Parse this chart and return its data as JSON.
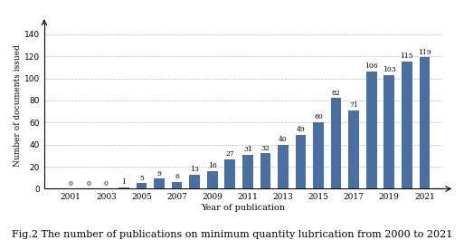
{
  "years": [
    2001,
    2002,
    2003,
    2004,
    2005,
    2006,
    2007,
    2008,
    2009,
    2010,
    2011,
    2012,
    2013,
    2014,
    2015,
    2016,
    2017,
    2018,
    2019,
    2020,
    2021
  ],
  "values": [
    0,
    0,
    0,
    1,
    5,
    9,
    6,
    13,
    16,
    27,
    31,
    32,
    40,
    49,
    60,
    82,
    71,
    106,
    103,
    115,
    119
  ],
  "bar_color": "#4a6fa5",
  "xlabel": "Year of publication",
  "ylabel": "Number of documents issued",
  "ylim": [
    0,
    150
  ],
  "yticks": [
    0,
    20,
    40,
    60,
    80,
    100,
    120,
    140
  ],
  "xtick_labels": [
    "2001",
    "2003",
    "2005",
    "2007",
    "2009",
    "2011",
    "2013",
    "2015",
    "2017",
    "2019",
    "2021"
  ],
  "xtick_positions": [
    2001,
    2003,
    2005,
    2007,
    2009,
    2011,
    2013,
    2015,
    2017,
    2019,
    2021
  ],
  "caption": "Fig.2 The number of publications on minimum quantity lubrication from 2000 to 2021",
  "bar_width": 0.6,
  "grid_color": "#bbbbbb",
  "grid_linestyle": "--",
  "background_color": "#ffffff",
  "label_fontsize": 5.5,
  "axis_fontsize": 6.5,
  "ylabel_fontsize": 6.5,
  "xlabel_fontsize": 7.0,
  "caption_fontsize": 8.0
}
